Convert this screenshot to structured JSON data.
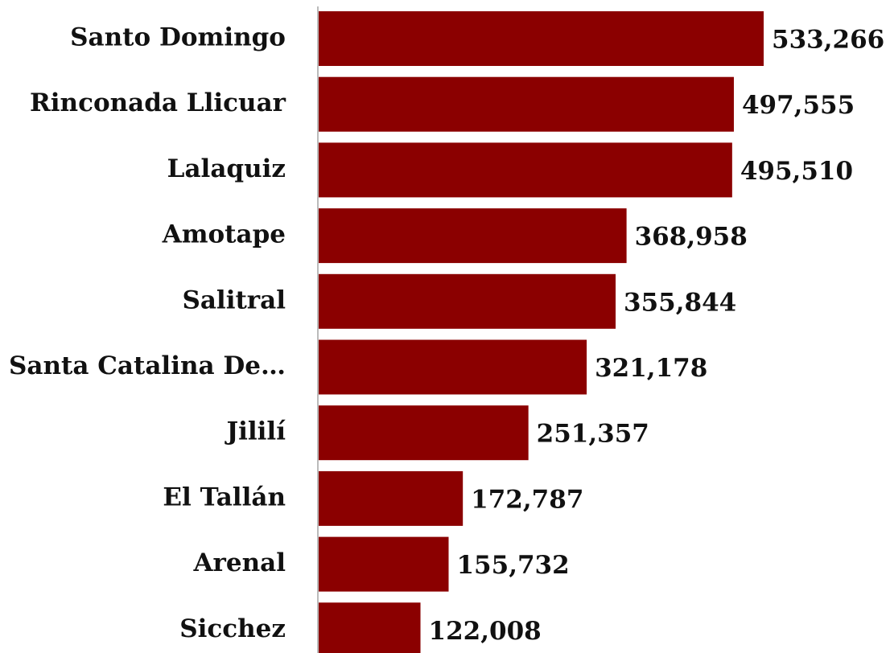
{
  "chart_data": {
    "type": "barh",
    "color": "#8b0000",
    "categories": [
      "Santo Domingo",
      "Rinconada Llicuar",
      "Lalaquiz",
      "Amotape",
      "Salitral",
      "Santa Catalina De…",
      "Jililí",
      "El Tallán",
      "Arenal",
      "Sicchez"
    ],
    "values": [
      533266,
      497555,
      495510,
      368958,
      355844,
      321178,
      251357,
      172787,
      155732,
      122008
    ],
    "value_labels": [
      "533,266",
      "497,555",
      "495,510",
      "368,958",
      "355,844",
      "321,178",
      "251,357",
      "172,787",
      "155,732",
      "122,008"
    ]
  }
}
